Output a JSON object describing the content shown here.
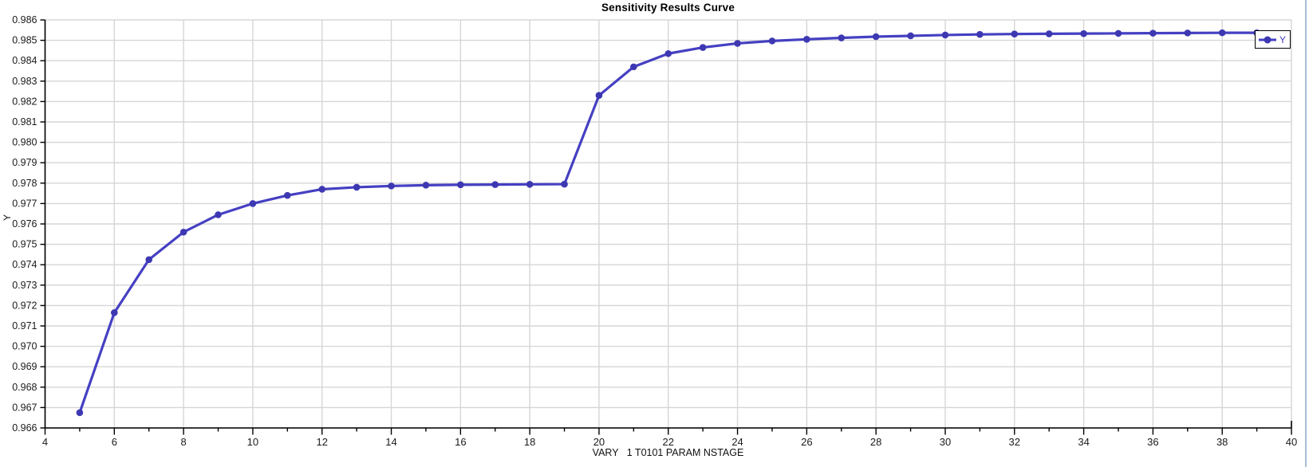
{
  "chart_data": {
    "type": "line",
    "title": "Sensitivity Results Curve",
    "xlabel": "VARY   1 T0101 PARAM NSTAGE",
    "ylabel": "Y",
    "xlim": [
      4,
      40
    ],
    "ylim": [
      0.966,
      0.986
    ],
    "x_major_tick_step": 2,
    "x_minor_tick_step": 1,
    "y_tick_step": 0.001,
    "y_tick_decimals": 3,
    "grid": true,
    "legend": {
      "position": "top-right",
      "entries": [
        {
          "label": "Y",
          "color": "#4540C2"
        }
      ]
    },
    "series": [
      {
        "name": "Y",
        "marker": "circle",
        "x": [
          5,
          6,
          7,
          8,
          9,
          10,
          11,
          12,
          13,
          14,
          15,
          16,
          17,
          18,
          19,
          20,
          21,
          22,
          23,
          24,
          25,
          26,
          27,
          28,
          29,
          30,
          31,
          32,
          33,
          34,
          35,
          36,
          37,
          38,
          39
        ],
        "y": [
          0.96675,
          0.97165,
          0.97425,
          0.9756,
          0.97645,
          0.977,
          0.9774,
          0.9777,
          0.9778,
          0.97786,
          0.9779,
          0.97792,
          0.97793,
          0.97794,
          0.97795,
          0.9823,
          0.9837,
          0.98435,
          0.98465,
          0.98485,
          0.98497,
          0.98505,
          0.98512,
          0.98518,
          0.98522,
          0.98526,
          0.98529,
          0.98531,
          0.98532,
          0.98533,
          0.98534,
          0.98535,
          0.98536,
          0.98537,
          0.98537
        ]
      }
    ],
    "colors": {
      "line": "#4540C2",
      "marker": "#3D38B2",
      "grid": "#D6D6D6",
      "axis": "#000000",
      "tick_text": "#1A1A1A",
      "legend_border": "#000000",
      "legend_text": "#4540C2",
      "window_border": "#A9BFD3"
    }
  }
}
